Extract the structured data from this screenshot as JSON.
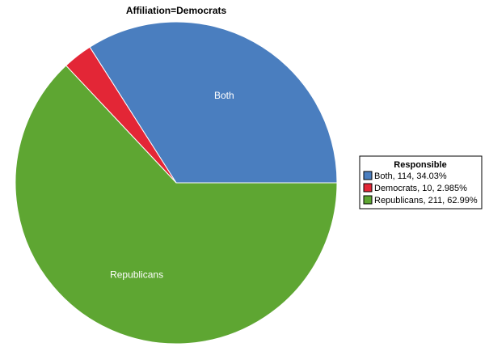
{
  "chart_data": {
    "type": "pie",
    "title": "Affiliation=Democrats",
    "legend_title": "Responsible",
    "legend_position": "right",
    "slices": [
      {
        "name": "Both",
        "value": 114,
        "percent_label": "34.03%",
        "legend_label": "Both, 114, 34.03%",
        "slice_label": "Both",
        "color": "#4a7ebf"
      },
      {
        "name": "Democrats",
        "value": 10,
        "percent_label": "2.985%",
        "legend_label": "Democrats, 10, 2.985%",
        "slice_label": "",
        "color": "#e32636"
      },
      {
        "name": "Republicans",
        "value": 211,
        "percent_label": "62.99%",
        "legend_label": "Republicans, 211, 62.99%",
        "slice_label": "Republicans",
        "color": "#5ea632"
      }
    ]
  }
}
